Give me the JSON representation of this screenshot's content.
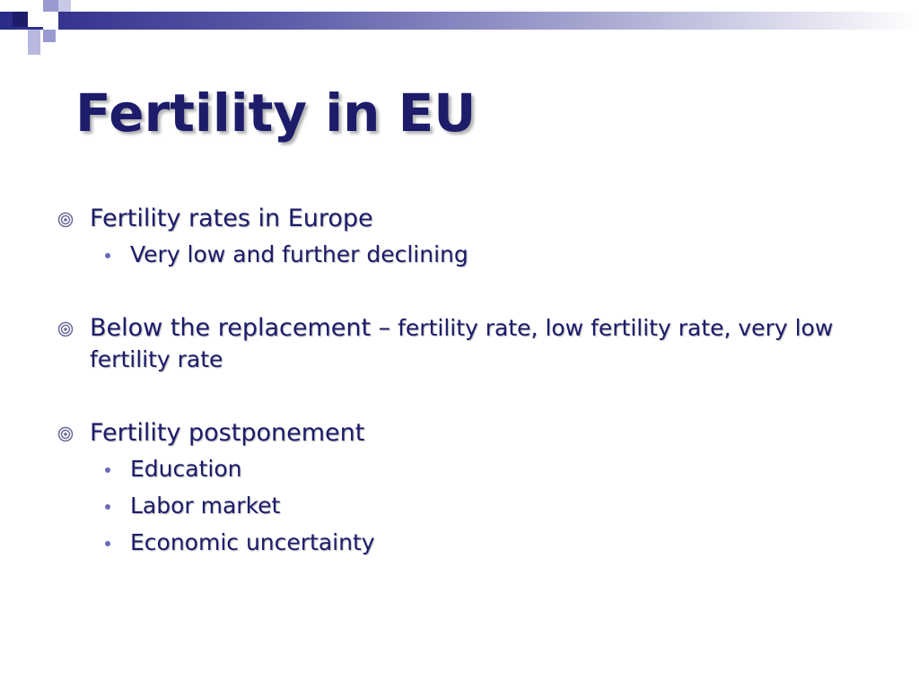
{
  "slide": {
    "title": "Fertility in EU",
    "bullets": [
      {
        "text": "Fertility rates in Europe",
        "subitems": [
          "Very low and further declining"
        ]
      },
      {
        "text_main": "Below the replacement –",
        "text_small": " fertility rate, low fertility rate, very low fertility rate"
      },
      {
        "text": "Fertility postponement",
        "subitems": [
          "Education",
          "Labor market",
          "Economic uncertainty"
        ]
      }
    ]
  },
  "colors": {
    "text": "#1c1c6b",
    "accent": "#2a2a88",
    "accent_light": "#a8a8d2"
  },
  "icons": {
    "level1": "target-ring-icon",
    "level2": "dot-icon"
  }
}
